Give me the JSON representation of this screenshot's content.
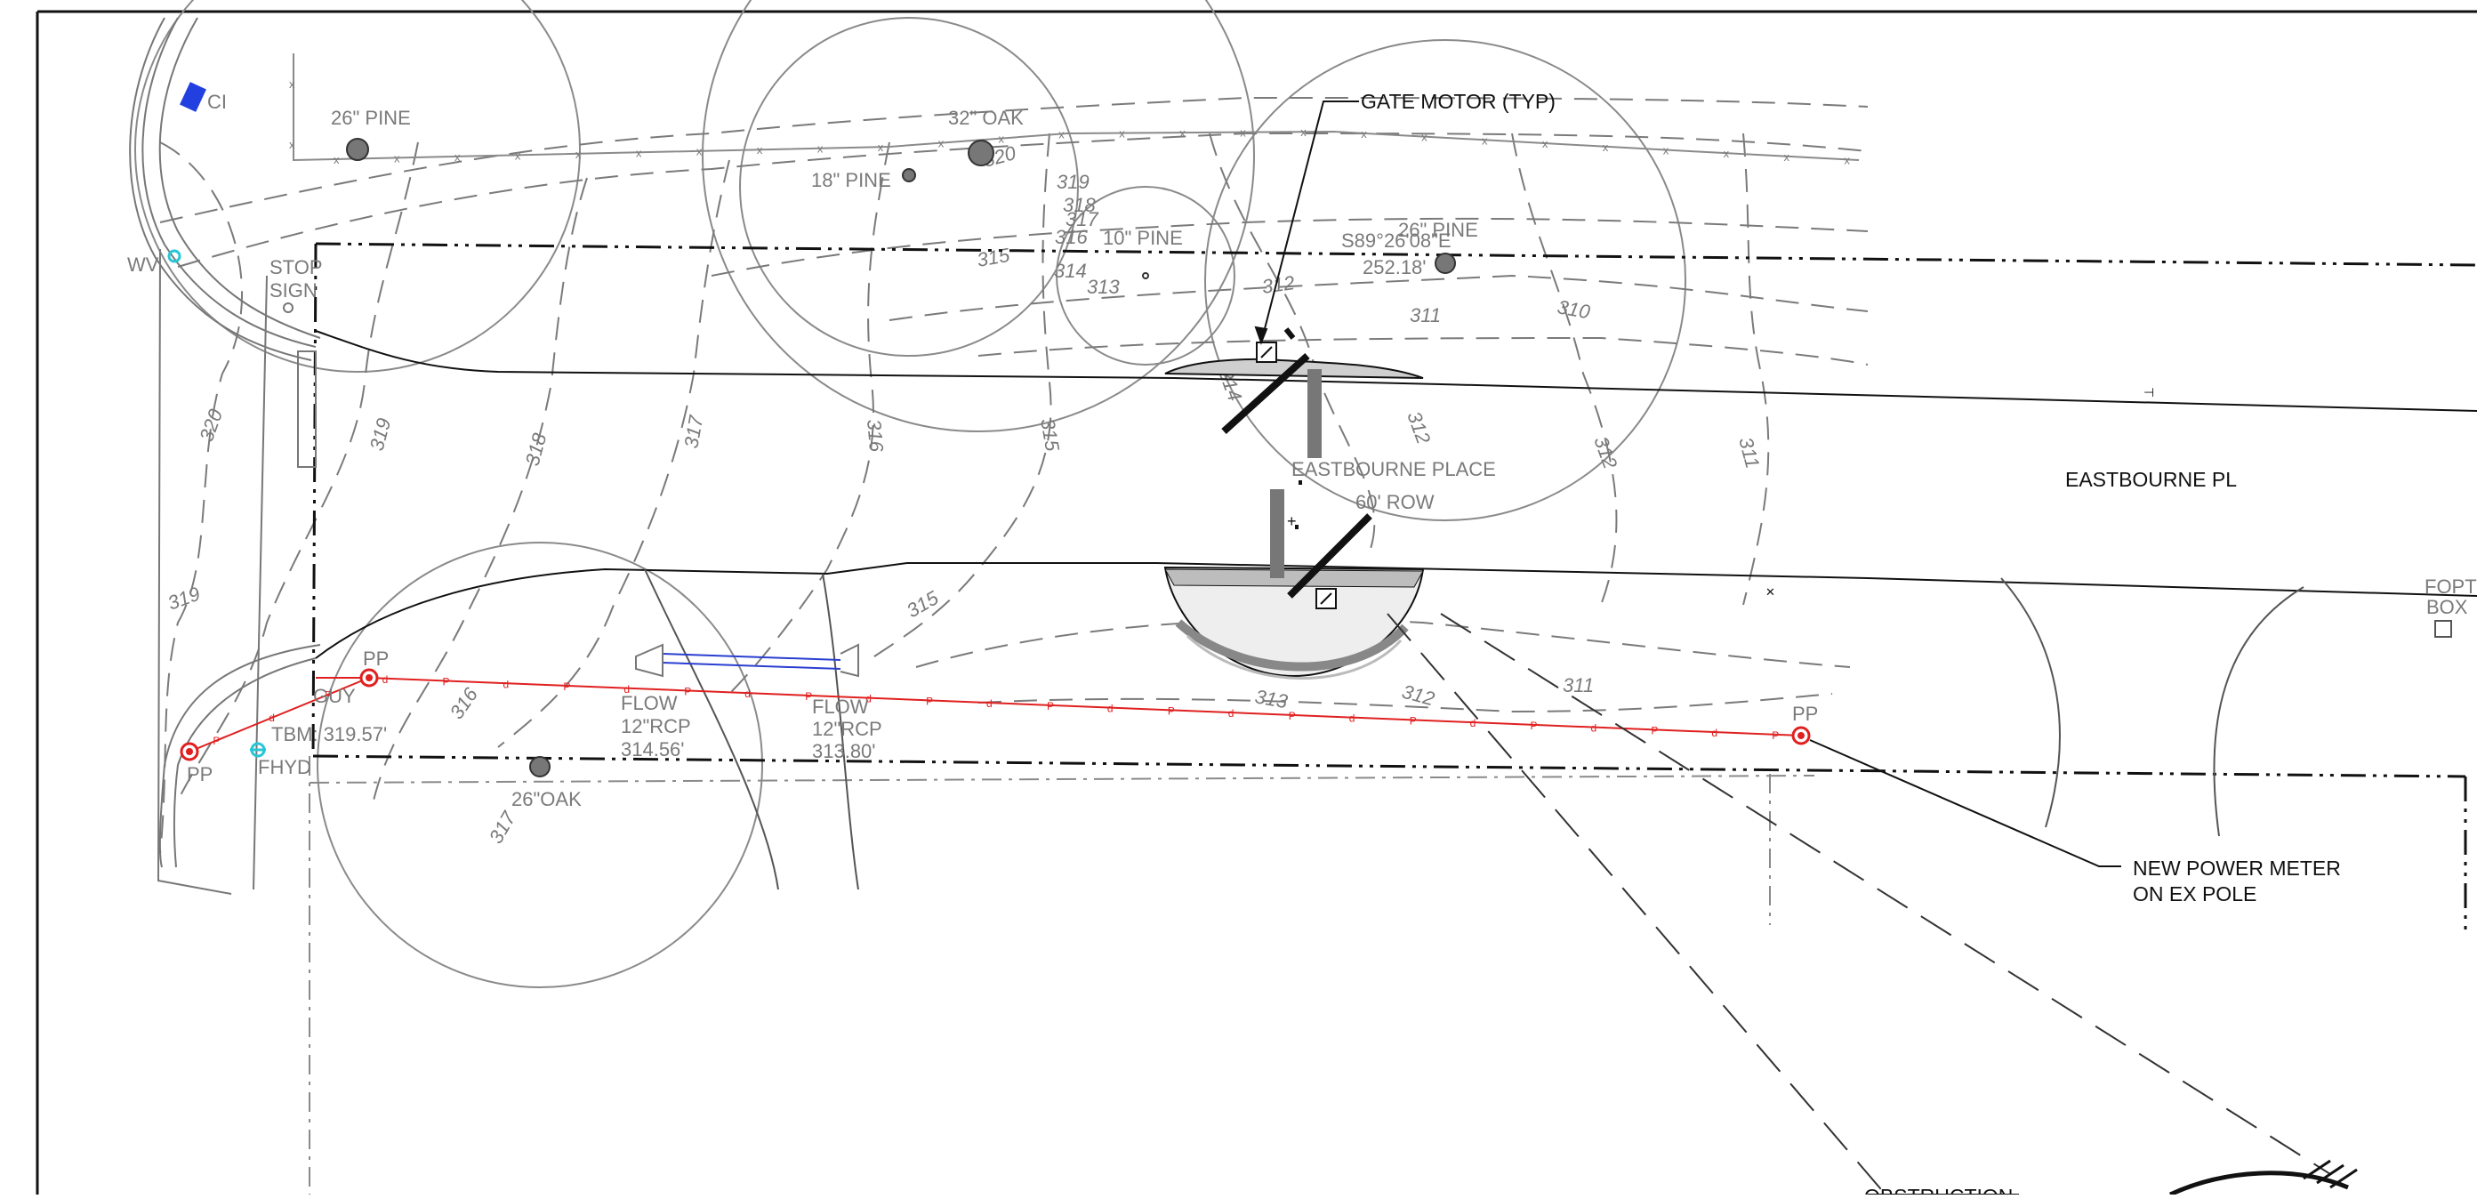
{
  "drawing": {
    "colors": {
      "background": "#ffffff",
      "linework": "#111111",
      "existing_features": "#7a7a7a",
      "power_line": "#e02020",
      "pipe": "#2a3fd0",
      "valve": "#27c6d6",
      "inlet": "#2240e0"
    },
    "street": {
      "name_label": "EASTBOURNE PL",
      "place_label": "EASTBOURNE  PLACE",
      "row_label": "60' ROW"
    },
    "property_line_bearing": "S89°26'08\"E",
    "property_line_distance": "252.18'",
    "callouts": {
      "gate_motor": "GATE MOTOR (TYP)",
      "power_meter_line1": "NEW  POWER METER",
      "power_meter_line2": "ON EX POLE",
      "obstruction": "OBSTRUCTION"
    },
    "trees": [
      {
        "label": "26\" PINE"
      },
      {
        "label": "32\" OAK"
      },
      {
        "label": "18\" PINE"
      },
      {
        "label": "10\" PINE"
      },
      {
        "label": "26\" PINE"
      },
      {
        "label": "26\"OAK"
      }
    ],
    "utilities": {
      "curb_inlet": "CI",
      "water_valve": "WV",
      "stop_sign_line1": "STOP",
      "stop_sign_line2": "SIGN",
      "power_pole": "PP",
      "guy_wire": "GUY",
      "fire_hydrant": "FHYD",
      "benchmark": "TBM: 319.57'",
      "fiber_optic_line1": "FOPT",
      "fiber_optic_line2": "BOX"
    },
    "flow_lines": [
      {
        "label": "FLOW",
        "pipe": "12\"RCP",
        "elevation": "314.56'"
      },
      {
        "label": "FLOW",
        "pipe": "12\"RCP",
        "elevation": "313.80'"
      }
    ],
    "fence_marker": "x",
    "power_marker": "P",
    "drain_marker": "d",
    "contours": [
      "320",
      "319",
      "318",
      "317",
      "316",
      "315",
      "314",
      "313",
      "312",
      "311",
      "310"
    ]
  }
}
